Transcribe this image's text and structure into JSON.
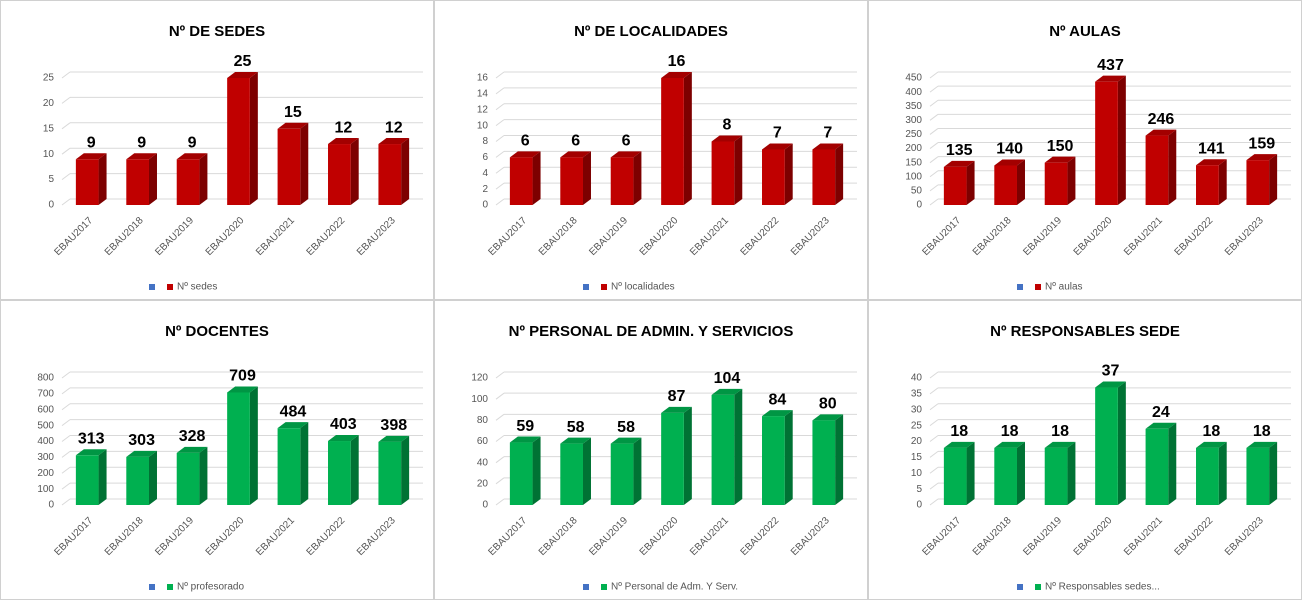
{
  "chart_data": [
    {
      "type": "bar",
      "title": "Nº DE SEDES",
      "categories": [
        "EBAU2017",
        "EBAU2018",
        "EBAU2019",
        "EBAU2020",
        "EBAU2021",
        "EBAU2022",
        "EBAU2023"
      ],
      "series": [
        {
          "name": "Nº sedes",
          "color": "#c00000",
          "values": [
            9,
            9,
            9,
            25,
            15,
            12,
            12
          ]
        }
      ],
      "ylim": [
        0,
        25
      ],
      "yticks": [
        0,
        5,
        10,
        15,
        20,
        25
      ],
      "grid": true
    },
    {
      "type": "bar",
      "title": "Nº DE LOCALIDADES",
      "categories": [
        "EBAU2017",
        "EBAU2018",
        "EBAU2019",
        "EBAU2020",
        "EBAU2021",
        "EBAU2022",
        "EBAU2023"
      ],
      "series": [
        {
          "name": "Nº localidades",
          "color": "#c00000",
          "values": [
            6,
            6,
            6,
            16,
            8,
            7,
            7
          ]
        }
      ],
      "ylim": [
        0,
        16
      ],
      "yticks": [
        0,
        2,
        4,
        6,
        8,
        10,
        12,
        14,
        16
      ],
      "grid": true
    },
    {
      "type": "bar",
      "title": "Nº AULAS",
      "categories": [
        "EBAU2017",
        "EBAU2018",
        "EBAU2019",
        "EBAU2020",
        "EBAU2021",
        "EBAU2022",
        "EBAU2023"
      ],
      "series": [
        {
          "name": "Nº aulas",
          "color": "#c00000",
          "values": [
            135,
            140,
            150,
            437,
            246,
            141,
            159
          ]
        }
      ],
      "ylim": [
        0,
        450
      ],
      "yticks": [
        0,
        50,
        100,
        150,
        200,
        250,
        300,
        350,
        400,
        450
      ],
      "grid": true
    },
    {
      "type": "bar",
      "title": "Nº DOCENTES",
      "categories": [
        "EBAU2017",
        "EBAU2018",
        "EBAU2019",
        "EBAU2020",
        "EBAU2021",
        "EBAU2022",
        "EBAU2023"
      ],
      "series": [
        {
          "name": "Nº profesorado",
          "color": "#00b050",
          "values": [
            313,
            303,
            328,
            709,
            484,
            403,
            398
          ]
        }
      ],
      "ylim": [
        0,
        800
      ],
      "yticks": [
        0,
        100,
        200,
        300,
        400,
        500,
        600,
        700,
        800
      ],
      "grid": true
    },
    {
      "type": "bar",
      "title": "Nº PERSONAL DE ADMIN. Y SERVICIOS",
      "categories": [
        "EBAU2017",
        "EBAU2018",
        "EBAU2019",
        "EBAU2020",
        "EBAU2021",
        "EBAU2022",
        "EBAU2023"
      ],
      "series": [
        {
          "name": "Nº Personal de Adm. Y Serv.",
          "color": "#00b050",
          "values": [
            59,
            58,
            58,
            87,
            104,
            84,
            80
          ]
        }
      ],
      "ylim": [
        0,
        120
      ],
      "yticks": [
        0,
        20,
        40,
        60,
        80,
        100,
        120
      ],
      "grid": true
    },
    {
      "type": "bar",
      "title": "Nº RESPONSABLES SEDE",
      "categories": [
        "EBAU2017",
        "EBAU2018",
        "EBAU2019",
        "EBAU2020",
        "EBAU2021",
        "EBAU2022",
        "EBAU2023"
      ],
      "series": [
        {
          "name": "Nº Responsables sedes...",
          "color": "#00b050",
          "values": [
            18,
            18,
            18,
            37,
            24,
            18,
            18
          ]
        }
      ],
      "ylim": [
        0,
        40
      ],
      "yticks": [
        0,
        5,
        10,
        15,
        20,
        25,
        30,
        35,
        40
      ],
      "grid": true
    }
  ]
}
